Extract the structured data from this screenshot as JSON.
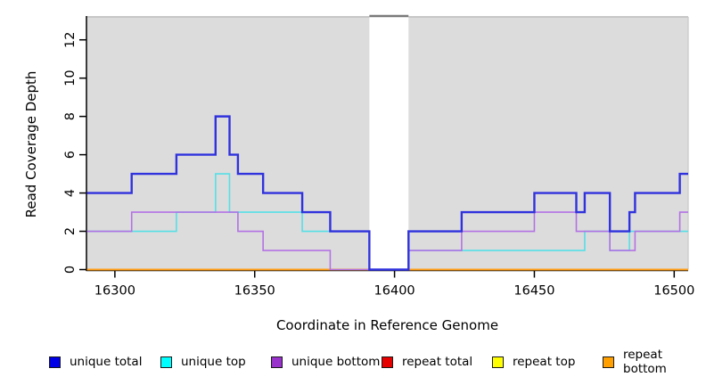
{
  "chart_data": {
    "type": "line",
    "subtype": "step-coverage",
    "title": "",
    "xlabel": "Coordinate in Reference Genome",
    "ylabel": "Read Coverage Depth",
    "xlim": [
      16290,
      16505
    ],
    "ylim": [
      0,
      13.15
    ],
    "x_ticks": [
      16300,
      16350,
      16400,
      16450,
      16500
    ],
    "y_ticks": [
      0,
      2,
      4,
      6,
      8,
      10,
      12
    ],
    "grid": "off",
    "panel_bg": "#dcdcdc",
    "background": "#ffffff",
    "gap_region": {
      "start": 16391,
      "end": 16405,
      "fill": "#ffffff",
      "cap_color": "#7a7a7a"
    },
    "series": [
      {
        "name": "repeat total",
        "line_color": "#dd0000",
        "line_width": 1.6,
        "segments": [
          [
            16290,
            16505,
            0
          ]
        ]
      },
      {
        "name": "repeat top",
        "line_color": "#ffff00",
        "line_width": 1.6,
        "segments": [
          [
            16290,
            16505,
            0
          ]
        ]
      },
      {
        "name": "repeat bottom",
        "line_color": "#ff9d15",
        "line_width": 2.0,
        "segments": [
          [
            16290,
            16505,
            0
          ]
        ]
      },
      {
        "name": "unique top",
        "line_color": "#55dfe6",
        "line_width": 1.6,
        "segments": [
          [
            16290,
            16322,
            2
          ],
          [
            16322,
            16336,
            3
          ],
          [
            16336,
            16341,
            5
          ],
          [
            16341,
            16367,
            3
          ],
          [
            16367,
            16391,
            2
          ],
          [
            16391,
            16405,
            0
          ],
          [
            16405,
            16468,
            1
          ],
          [
            16468,
            16477,
            2
          ],
          [
            16477,
            16484,
            1
          ],
          [
            16484,
            16505,
            2
          ]
        ]
      },
      {
        "name": "unique bottom",
        "line_color": "#b272e4",
        "line_width": 1.6,
        "segments": [
          [
            16290,
            16306,
            2
          ],
          [
            16306,
            16344,
            3
          ],
          [
            16344,
            16353,
            2
          ],
          [
            16353,
            16377,
            1
          ],
          [
            16377,
            16405,
            0
          ],
          [
            16405,
            16424,
            1
          ],
          [
            16424,
            16450,
            2
          ],
          [
            16450,
            16465,
            3
          ],
          [
            16465,
            16477,
            2
          ],
          [
            16477,
            16486,
            1
          ],
          [
            16486,
            16502,
            2
          ],
          [
            16502,
            16505,
            3
          ]
        ]
      },
      {
        "name": "unique total",
        "line_color": "#3032dd",
        "line_width": 2.4,
        "segments": [
          [
            16290,
            16306,
            4
          ],
          [
            16306,
            16322,
            5
          ],
          [
            16322,
            16336,
            6
          ],
          [
            16336,
            16341,
            8
          ],
          [
            16341,
            16344,
            6
          ],
          [
            16344,
            16353,
            5
          ],
          [
            16353,
            16367,
            4
          ],
          [
            16367,
            16377,
            3
          ],
          [
            16377,
            16391,
            2
          ],
          [
            16391,
            16405,
            0
          ],
          [
            16405,
            16424,
            2
          ],
          [
            16424,
            16450,
            3
          ],
          [
            16450,
            16465,
            4
          ],
          [
            16465,
            16468,
            3
          ],
          [
            16468,
            16477,
            4
          ],
          [
            16477,
            16484,
            2
          ],
          [
            16484,
            16486,
            3
          ],
          [
            16486,
            16502,
            4
          ],
          [
            16502,
            16505,
            5
          ]
        ]
      }
    ],
    "legend": {
      "position": "bottom",
      "items": [
        {
          "label": "unique total",
          "color": "#0000e6"
        },
        {
          "label": "unique top",
          "color": "#00ffff"
        },
        {
          "label": "unique bottom",
          "color": "#9932cc"
        },
        {
          "label": "repeat total",
          "color": "#e60000"
        },
        {
          "label": "repeat top",
          "color": "#ffff00"
        },
        {
          "label": "repeat bottom",
          "color": "#ffa000"
        }
      ]
    }
  }
}
